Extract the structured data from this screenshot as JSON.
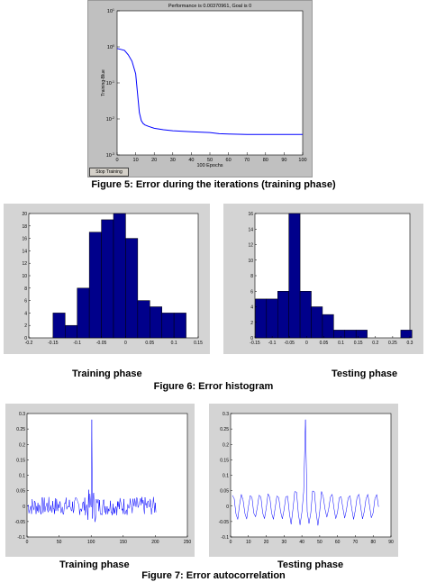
{
  "figure5": {
    "caption": "Figure 5: Error during the iterations (training phase)",
    "title": "Performance is 0.00370961, Goal is 0",
    "stop_button": "Stop Training",
    "xlabel": "100 Epochs",
    "ylabel": "Training-Blue"
  },
  "figure6": {
    "caption": "Figure 6: Error histogram",
    "left_label": "Training phase",
    "right_label": "Testing phase"
  },
  "figure7": {
    "caption": "Figure 7: Error autocorrelation",
    "left_label": "Training phase",
    "right_label": "Testing phase"
  },
  "colors": {
    "line": "#0000ff",
    "bar_fill": "#00008b",
    "panel": "#c0c0c0"
  },
  "chart_data": [
    {
      "type": "line",
      "title": "Performance is 0.00370961, Goal is 0",
      "xlabel": "100 Epochs",
      "ylabel": "Training-Blue",
      "yscale": "log",
      "xlim": [
        0,
        100
      ],
      "ylim": [
        0.001,
        10
      ],
      "xticks": [
        "0",
        "10",
        "20",
        "30",
        "40",
        "50",
        "60",
        "70",
        "80",
        "90",
        "100"
      ],
      "yticks": [
        "10^1",
        "10^0",
        "10^-1",
        "10^-2",
        "10^-3"
      ],
      "x": [
        0,
        2,
        4,
        6,
        8,
        10,
        11,
        12,
        13,
        14,
        15,
        17,
        20,
        25,
        30,
        40,
        50,
        55,
        60,
        70,
        80,
        90,
        100
      ],
      "y": [
        0.9,
        0.85,
        0.8,
        0.6,
        0.4,
        0.18,
        0.05,
        0.015,
        0.009,
        0.0075,
        0.0068,
        0.0062,
        0.0055,
        0.005,
        0.0047,
        0.0044,
        0.0042,
        0.0039,
        0.0038,
        0.0037,
        0.0037,
        0.0037,
        0.0037
      ],
      "series": [
        {
          "name": "Training",
          "color": "#0000ff"
        }
      ]
    },
    {
      "type": "bar",
      "panel": "training-histogram",
      "xlim": [
        -0.2,
        0.15
      ],
      "ylim": [
        0,
        20
      ],
      "xticks": [
        "-0.2",
        "-0.15",
        "-0.1",
        "-0.05",
        "0",
        "0.05",
        "0.1",
        "0.15"
      ],
      "yticks": [
        "0",
        "2",
        "4",
        "6",
        "8",
        "10",
        "12",
        "14",
        "16",
        "18",
        "20"
      ],
      "bin_width": 0.025,
      "bin_centers": [
        -0.1375,
        -0.1125,
        -0.0875,
        -0.0625,
        -0.0375,
        -0.0125,
        0.0125,
        0.0375,
        0.0625,
        0.0875,
        0.1125
      ],
      "values": [
        4,
        2,
        8,
        17,
        19,
        20,
        16,
        6,
        5,
        4,
        4
      ]
    },
    {
      "type": "bar",
      "panel": "testing-histogram",
      "xlim": [
        -0.15,
        0.3
      ],
      "ylim": [
        0,
        16
      ],
      "xticks": [
        "-0.15",
        "-0.1",
        "-0.05",
        "0",
        "0.05",
        "0.1",
        "0.15",
        "0.2",
        "0.25",
        "0.3"
      ],
      "yticks": [
        "0",
        "2",
        "4",
        "6",
        "8",
        "10",
        "12",
        "14",
        "16"
      ],
      "bin_width": 0.0325,
      "bin_centers": [
        -0.1327,
        -0.1002,
        -0.0677,
        -0.0352,
        -0.0027,
        0.0298,
        0.0623,
        0.0948,
        0.1273,
        0.1598,
        0.1923,
        0.2248,
        0.2573,
        0.2898
      ],
      "values": [
        5,
        5,
        6,
        16,
        6,
        4,
        3,
        1,
        1,
        1,
        0,
        0,
        0,
        1
      ]
    },
    {
      "type": "line",
      "panel": "training-autocorrelation",
      "xlim": [
        0,
        250
      ],
      "ylim": [
        -0.1,
        0.3
      ],
      "xticks": [
        "0",
        "50",
        "100",
        "150",
        "200",
        "250"
      ],
      "yticks": [
        "-0.1",
        "-0.05",
        "0",
        "0.05",
        "0.1",
        "0.15",
        "0.2",
        "0.25",
        "0.3"
      ],
      "lags": 201,
      "peak": {
        "x": 101,
        "y": 0.28
      },
      "noise_amplitude": 0.03
    },
    {
      "type": "line",
      "panel": "testing-autocorrelation",
      "xlim": [
        0,
        90
      ],
      "ylim": [
        -0.1,
        0.3
      ],
      "xticks": [
        "0",
        "10",
        "20",
        "30",
        "40",
        "50",
        "60",
        "70",
        "80",
        "90"
      ],
      "yticks": [
        "-0.1",
        "-0.05",
        "0",
        "0.05",
        "0.1",
        "0.15",
        "0.2",
        "0.25",
        "0.3"
      ],
      "lags": 83,
      "peak": {
        "x": 42,
        "y": 0.28
      },
      "oscillation_amplitude": 0.04
    }
  ]
}
